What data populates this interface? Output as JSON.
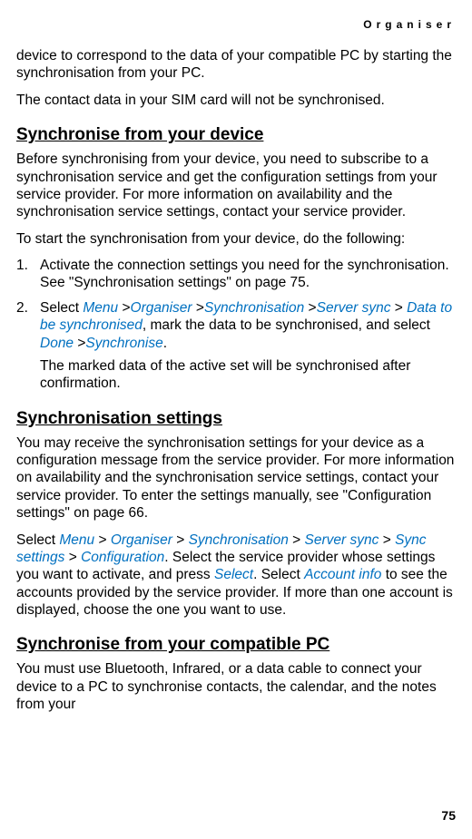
{
  "header": {
    "title": "Organiser"
  },
  "intro": {
    "p1": "device to correspond to the data of your compatible PC by starting the synchronisation from your PC.",
    "p2": "The contact data in your SIM card will not be synchronised."
  },
  "section1": {
    "heading": "Synchronise from your device",
    "p1": "Before synchronising from your device, you need to subscribe to a synchronisation service and get the configuration settings from your service provider. For more information on availability and the synchronisation service settings, contact your service provider.",
    "p2": "To start the synchronisation from your device, do the following:",
    "step1": "Activate the connection settings you need for the synchronisation. See \"Synchronisation settings\" on page 75.",
    "step2_a": "Select ",
    "step2_menu1": "Menu",
    "step2_gt1": " >",
    "step2_menu2": "Organiser",
    "step2_gt2": " >",
    "step2_menu3": "Synchronisation",
    "step2_gt3": " >",
    "step2_menu4": "Server sync",
    "step2_gt4": " > ",
    "step2_menu5": "Data to be synchronised",
    "step2_b": ", mark the data to be synchronised, and select ",
    "step2_menu6": "Done",
    "step2_gt5": " >",
    "step2_menu7": "Synchronise",
    "step2_c": ".",
    "step2_sub": "The marked data of the active set will be synchronised after confirmation."
  },
  "section2": {
    "heading": "Synchronisation settings",
    "p1": "You may receive the synchronisation settings for your device as a configuration message from the service provider. For more information on availability and the synchronisation service settings, contact your service provider. To enter the settings manually, see \"Configuration settings\" on page 66.",
    "p2_a": "Select ",
    "p2_m1": "Menu",
    "p2_s1": " > ",
    "p2_m2": "Organiser",
    "p2_s2": " > ",
    "p2_m3": "Synchronisation",
    "p2_s3": " > ",
    "p2_m4": "Server sync",
    "p2_s4": " > ",
    "p2_m5": "Sync settings",
    "p2_s5": " > ",
    "p2_m6": "Configuration",
    "p2_b": ". Select the service provider whose settings you want to activate, and press ",
    "p2_m7": "Select",
    "p2_c": ". Select ",
    "p2_m8": "Account info",
    "p2_d": " to see the accounts provided by the service provider. If more than one account is displayed, choose the one you want to use."
  },
  "section3": {
    "heading": "Synchronise from your compatible PC",
    "p1": "You must use Bluetooth, Infrared, or a data cable to connect your device to a PC to synchronise contacts, the calendar, and the notes from your"
  },
  "footer": {
    "page": "75"
  }
}
